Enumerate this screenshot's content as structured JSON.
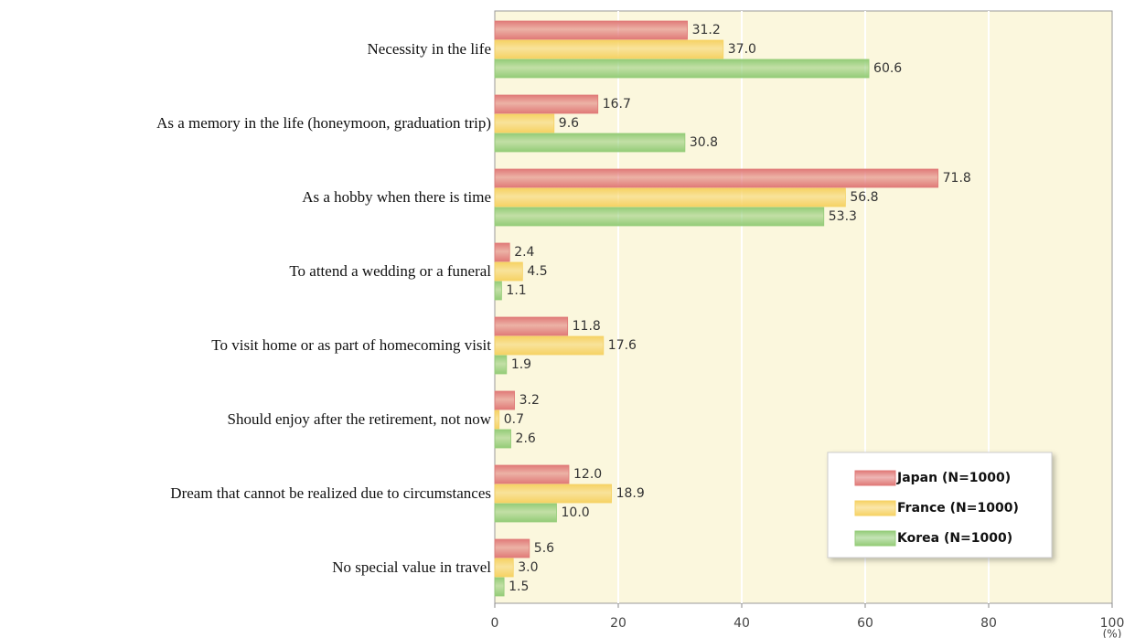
{
  "chart_data": {
    "type": "barh",
    "categories": [
      "Necessity in the life",
      "As a memory in the life (honeymoon, graduation trip)",
      "As a hobby when there is time",
      "To attend a wedding or a funeral",
      "To visit home or as part of homecoming visit",
      "Should enjoy after the retirement, not now",
      "Dream that cannot be realized due to circumstances",
      "No special value in travel"
    ],
    "series": [
      {
        "name": "Japan (N=1000)",
        "color": "#e07a78",
        "values": [
          31.2,
          16.7,
          71.8,
          2.4,
          11.8,
          3.2,
          12.0,
          5.6
        ],
        "value_labels": [
          "31.2",
          "16.7",
          "71.8",
          "2.4",
          "11.8",
          "3.2",
          "12.0",
          "5.6"
        ]
      },
      {
        "name": "France (N=1000)",
        "color": "#f6d264",
        "values": [
          37.0,
          9.6,
          56.8,
          4.5,
          17.6,
          0.7,
          18.9,
          3.0
        ],
        "value_labels": [
          "37.0",
          "9.6",
          "56.8",
          "4.5",
          "17.6",
          "0.7",
          "18.9",
          "3.0"
        ]
      },
      {
        "name": "Korea (N=1000)",
        "color": "#94cc78",
        "values": [
          60.6,
          30.8,
          53.3,
          1.1,
          1.9,
          2.6,
          10.0,
          1.5
        ],
        "value_labels": [
          "60.6",
          "30.8",
          "53.3",
          "1.1",
          "1.9",
          "2.6",
          "10.0",
          "1.5"
        ]
      }
    ],
    "xlim": [
      0,
      100
    ],
    "xticks": [
      0,
      20,
      40,
      60,
      80,
      100
    ],
    "xlabel": "(%)",
    "grid": true,
    "legend": "lower right"
  }
}
